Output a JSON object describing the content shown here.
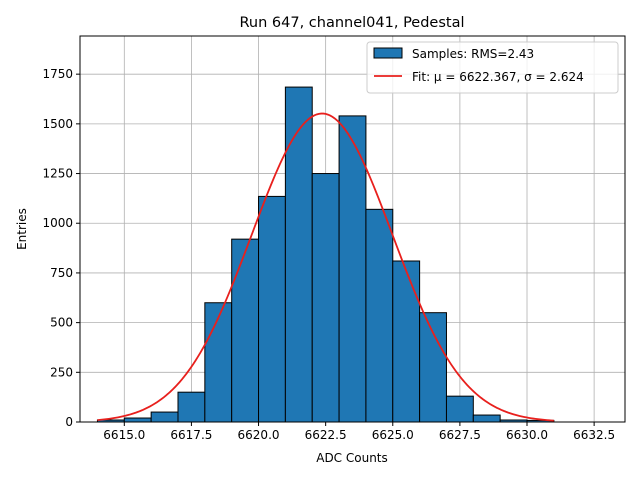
{
  "chart_data": {
    "type": "bar",
    "title": "Run 647, channel041, Pedestal",
    "xlabel": "ADC Counts",
    "ylabel": "Entries",
    "xlim": [
      6613.35,
      6633.65
    ],
    "ylim": [
      0,
      1942
    ],
    "xticks": [
      6615.0,
      6617.5,
      6620.0,
      6622.5,
      6625.0,
      6627.5,
      6630.0,
      6632.5
    ],
    "xtick_labels": [
      "6615.0",
      "6617.5",
      "6620.0",
      "6622.5",
      "6625.0",
      "6627.5",
      "6630.0",
      "6632.5"
    ],
    "yticks": [
      0,
      250,
      500,
      750,
      1000,
      1250,
      1500,
      1750
    ],
    "ytick_labels": [
      "0",
      "250",
      "500",
      "750",
      "1000",
      "1250",
      "1500",
      "1750"
    ],
    "grid": true,
    "legend_position": "top-right",
    "bin_edges": [
      6614.0,
      6615.0,
      6616.0,
      6617.0,
      6618.0,
      6619.0,
      6620.0,
      6621.0,
      6622.0,
      6623.0,
      6624.0,
      6625.0,
      6626.0,
      6627.0,
      6628.0,
      6629.0,
      6630.0,
      6631.0
    ],
    "counts": [
      10,
      20,
      50,
      150,
      600,
      920,
      1135,
      1685,
      1250,
      1540,
      1070,
      810,
      550,
      130,
      35,
      10,
      8
    ],
    "fit": {
      "mu": 6622.367,
      "sigma": 2.624,
      "amplitude": 1552,
      "x_range": [
        6614.0,
        6631.0
      ]
    },
    "series": [
      {
        "name": "Samples: RMS=2.43",
        "kind": "histogram",
        "color": "#1f77b4"
      },
      {
        "name": "Fit: μ = 6622.367, σ = 2.624",
        "kind": "line",
        "color": "#e8201d"
      }
    ]
  }
}
